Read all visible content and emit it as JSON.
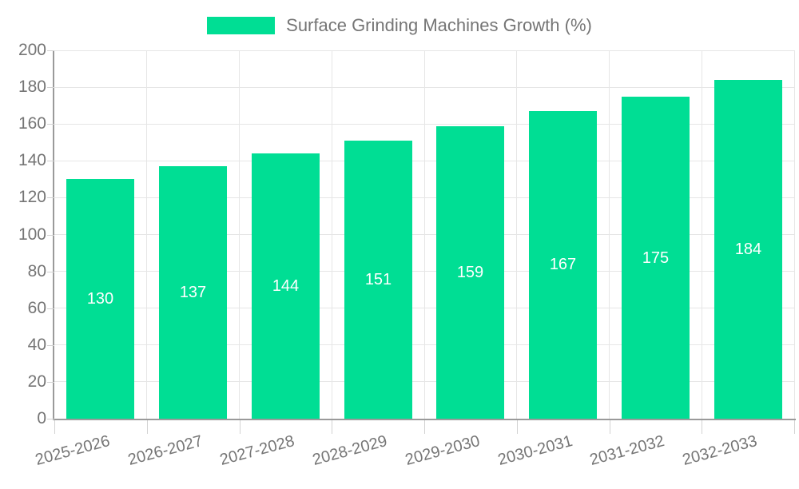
{
  "chart_data": {
    "type": "bar",
    "title": "",
    "legend": "Surface Grinding Machines Growth (%)",
    "legend_position": "top-center",
    "categories": [
      "2025-2026",
      "2026-2027",
      "2027-2028",
      "2028-2029",
      "2029-2030",
      "2030-2031",
      "2031-2032",
      "2032-2033"
    ],
    "series": [
      {
        "name": "Surface Grinding Machines Growth (%)",
        "values": [
          130,
          137,
          144,
          151,
          159,
          167,
          175,
          184
        ]
      }
    ],
    "bar_value_labels_shown": true,
    "xlabel": "",
    "ylabel": "",
    "ylim": [
      0,
      200
    ],
    "yticks": [
      0,
      20,
      40,
      60,
      80,
      100,
      120,
      140,
      160,
      180,
      200
    ],
    "grid": "horizontal and vertical gridlines on",
    "x_tick_label_rotation_deg": -15
  },
  "colors": {
    "bar_fill": "#00DE94",
    "bar_value_text": "#ffffff",
    "gridline": "#e6e6e6",
    "axis_line": "#9a9a9a",
    "tick_mark": "#d2d2d2",
    "tick_text": "#757575",
    "legend_text": "#757575",
    "background": "#ffffff"
  }
}
